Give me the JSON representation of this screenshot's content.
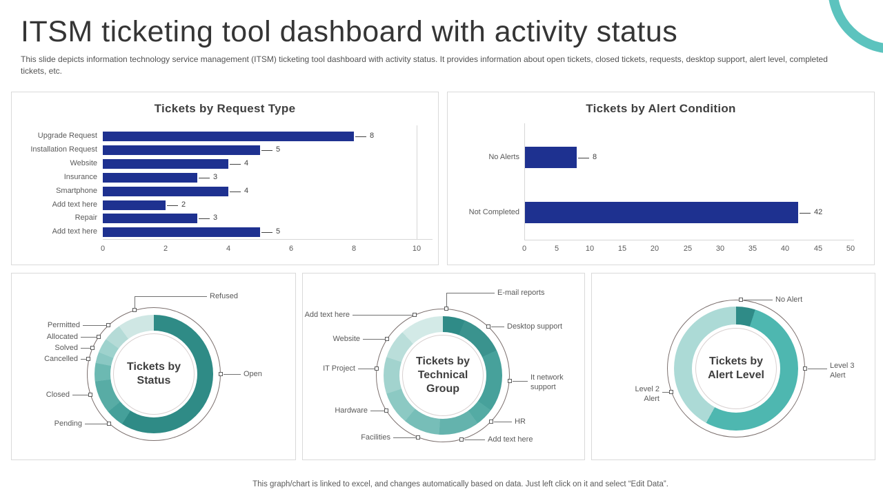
{
  "slide": {
    "title": "ITSM ticketing tool dashboard with activity status",
    "subtitle": "This slide depicts information technology service management (ITSM) ticketing tool dashboard with activity status. It provides information about open tickets, closed tickets, requests, desktop support, alert level, completed tickets, etc.",
    "footer": "This graph/chart is linked to excel, and changes automatically based on data. Just left click on it and select “Edit Data”."
  },
  "colors": {
    "bar_navy": "#1e3190",
    "deco_ring_teal": "#5cc3be",
    "panel_border": "#d9d9d9",
    "axis_line": "#d6d6d6",
    "leader_line": "#707070",
    "text_gray": "#595959",
    "value_text": "#404040",
    "donut_outer_circle": "#7b6f6d",
    "donut_inner_circle": "#d8d0d0"
  },
  "chart_data": [
    {
      "id": "request_type",
      "type": "bar",
      "orientation": "horizontal",
      "title": "Tickets by Request Type",
      "categories": [
        "Upgrade Request",
        "Installation Request",
        "Website",
        "Insurance",
        "Smartphone",
        "Add text here",
        "Repair",
        "Add text here"
      ],
      "values": [
        8,
        5,
        4,
        3,
        4,
        2,
        3,
        5
      ],
      "xlim": [
        0,
        10
      ],
      "xticks": [
        0,
        2,
        4,
        6,
        8,
        10
      ],
      "bar_color": "#1e3190",
      "grid": "baseline + end gridline",
      "legend": "none"
    },
    {
      "id": "alert_condition",
      "type": "bar",
      "orientation": "horizontal",
      "title": "Tickets by Alert Condition",
      "categories": [
        "No Alerts",
        "Not Completed"
      ],
      "values": [
        8,
        42
      ],
      "xlim": [
        0,
        50
      ],
      "xticks": [
        0,
        5,
        10,
        15,
        20,
        25,
        30,
        35,
        40,
        45,
        50
      ],
      "bar_color": "#1e3190",
      "grid": "baseline + zero axis line",
      "legend": "none"
    },
    {
      "id": "status_donut",
      "type": "pie",
      "donut": true,
      "center_label": "Tickets by Status",
      "segments": [
        {
          "label": "Open",
          "value": 59,
          "color": "#2f8b86"
        },
        {
          "label": "Pending",
          "value": 5,
          "color": "#45a09a"
        },
        {
          "label": "Closed",
          "value": 9,
          "color": "#58aca5"
        },
        {
          "label": "Cancelled",
          "value": 5,
          "color": "#6cb9b2"
        },
        {
          "label": "Solved",
          "value": 3,
          "color": "#8ac8c3"
        },
        {
          "label": "Allocated",
          "value": 4,
          "color": "#9ed2cd"
        },
        {
          "label": "Permitted",
          "value": 5,
          "color": "#b5dbd7"
        },
        {
          "label": "Refused",
          "value": 10,
          "color": "#cfe7e4"
        }
      ]
    },
    {
      "id": "technical_group_donut",
      "type": "pie",
      "donut": true,
      "center_label": "Tickets by Technical Group",
      "segments": [
        {
          "label": "E-mail reports",
          "value": 6,
          "color": "#2f8b87"
        },
        {
          "label": "Desktop support",
          "value": 12,
          "color": "#3a938e"
        },
        {
          "label": "It network support",
          "value": 17,
          "color": "#47a19b"
        },
        {
          "label": "HR",
          "value": 5,
          "color": "#54aba4"
        },
        {
          "label": "Add text here",
          "value": 11,
          "color": "#64b3ad"
        },
        {
          "label": "Facilities",
          "value": 10,
          "color": "#77beb8"
        },
        {
          "label": "Hardware",
          "value": 9,
          "color": "#8cc9c3"
        },
        {
          "label": "IT Project",
          "value": 10,
          "color": "#a2d3ce"
        },
        {
          "label": "Website",
          "value": 8,
          "color": "#badeda"
        },
        {
          "label": "Add text here",
          "value": 12,
          "color": "#d3eae7"
        }
      ]
    },
    {
      "id": "alert_level_donut",
      "type": "pie",
      "donut": true,
      "center_label": "Tickets by Alert Level",
      "segments": [
        {
          "label": "No Alert",
          "value": 5,
          "color": "#2f8b87"
        },
        {
          "label": "Level 3 Alert",
          "value": 53,
          "color": "#4eb7b0"
        },
        {
          "label": "Level 2 Alert",
          "value": 42,
          "color": "#acdad6"
        }
      ]
    }
  ]
}
